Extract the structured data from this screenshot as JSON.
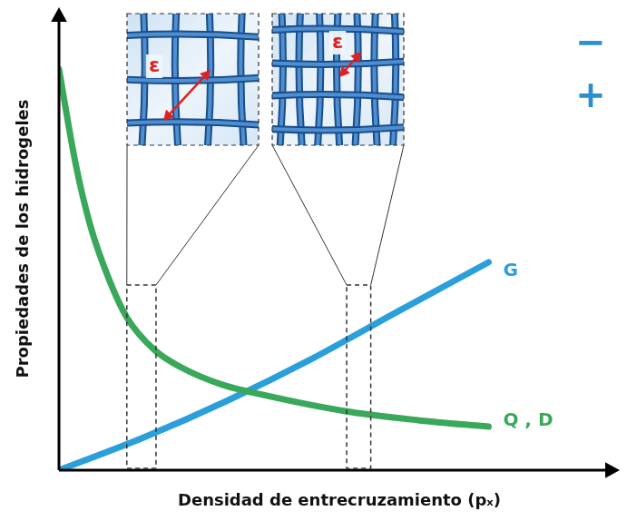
{
  "chart_data": {
    "type": "line",
    "x_label": "Densidad de entrecruzamiento (pₓ)",
    "y_label": "Propiedades de los hidrogeles",
    "xlim": [
      0,
      10
    ],
    "ylim": [
      0,
      10
    ],
    "tick_labels": false,
    "grid": false,
    "series": [
      {
        "name": "Q , D",
        "color": "#3aa85b",
        "x": [
          0,
          0.3,
          0.56,
          0.9,
          1.21,
          1.7,
          2.18,
          2.9,
          3.63,
          5.08,
          6.4,
          7.66
        ],
        "values": [
          8.66,
          6.6,
          5.28,
          4.1,
          3.3,
          2.6,
          2.22,
          1.85,
          1.63,
          1.28,
          1.08,
          0.94
        ]
      },
      {
        "name": "G",
        "color": "#2b9fd9",
        "x": [
          0,
          1.5,
          3,
          4.5,
          6,
          7.66
        ],
        "values": [
          0,
          0.7,
          1.5,
          2.4,
          3.4,
          4.49
        ]
      }
    ],
    "insets": [
      {
        "label": "ε",
        "x_range": [
          1.21,
          1.73
        ]
      },
      {
        "label": "ε",
        "x_range": [
          5.13,
          5.56
        ]
      }
    ],
    "annotations": [
      "−",
      "+"
    ]
  }
}
